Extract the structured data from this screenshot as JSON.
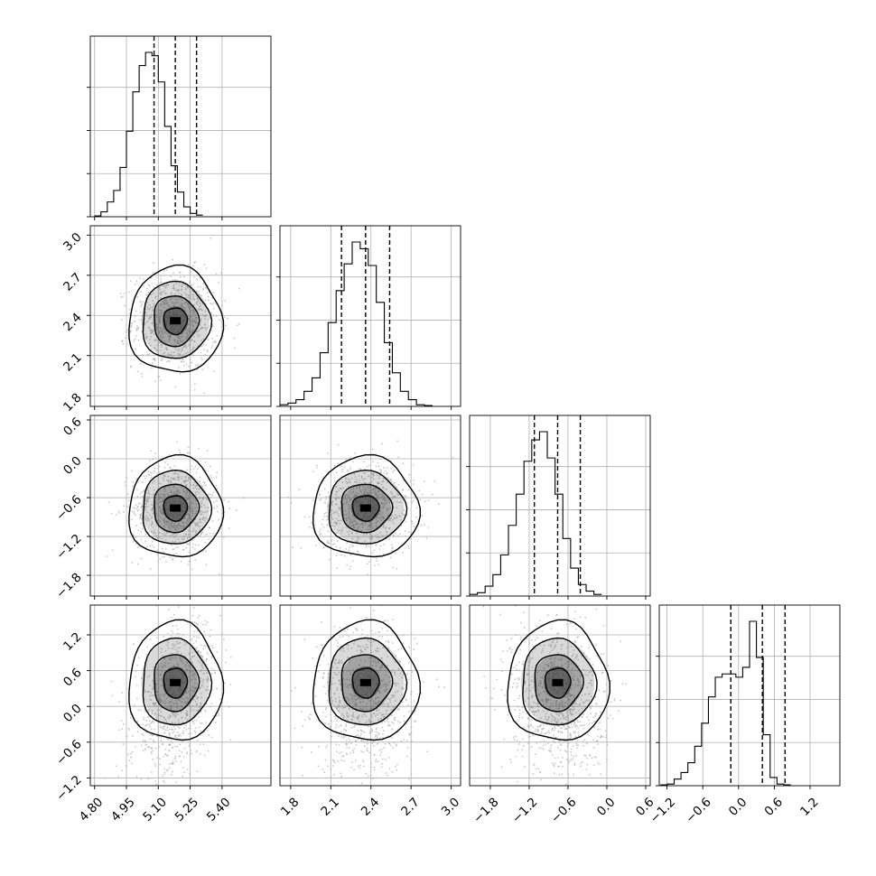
{
  "chart_data": {
    "type": "corner",
    "n_params": 4,
    "grid": true,
    "params": [
      {
        "range": [
          4.78,
          5.63
        ],
        "ticks": [
          4.8,
          4.95,
          5.1,
          5.25,
          5.4
        ],
        "tick_labels": [
          "4.80",
          "4.95",
          "5.10",
          "5.25",
          "5.40"
        ],
        "quantiles": [
          5.08,
          5.18,
          5.28
        ]
      },
      {
        "range": [
          1.72,
          3.07
        ],
        "ticks": [
          1.8,
          2.1,
          2.4,
          2.7,
          3.0
        ],
        "tick_labels": [
          "1.8",
          "2.1",
          "2.4",
          "2.7",
          "3.0"
        ],
        "quantiles": [
          2.18,
          2.36,
          2.54
        ]
      },
      {
        "range": [
          -2.12,
          0.67
        ],
        "ticks": [
          -1.8,
          -1.2,
          -0.6,
          0.0,
          0.6
        ],
        "tick_labels": [
          "−1.8",
          "−1.2",
          "−0.6",
          "0.0",
          "0.6"
        ],
        "quantiles": [
          -1.12,
          -0.76,
          -0.41
        ]
      },
      {
        "range": [
          -1.33,
          1.7
        ],
        "ticks": [
          -1.2,
          -0.6,
          0.0,
          0.6,
          1.2
        ],
        "tick_labels": [
          "−1.2",
          "−0.6",
          "0.0",
          "0.6",
          "1.2"
        ],
        "quantiles": [
          -0.13,
          0.4,
          0.78
        ]
      }
    ],
    "histograms": [
      {
        "param": 0,
        "edges_from": 4.8,
        "bin_width": 0.03,
        "counts": [
          0.5,
          3,
          9,
          16,
          30,
          52,
          76,
          92,
          100,
          98,
          82,
          55,
          31,
          15,
          6,
          2,
          1
        ]
      },
      {
        "param": 1,
        "edges_from": 1.72,
        "bin_width": 0.06,
        "counts": [
          1,
          2,
          4,
          9,
          17,
          32,
          50,
          69,
          85,
          98,
          94,
          84,
          62,
          38,
          20,
          9,
          4,
          1,
          0.5
        ]
      },
      {
        "param": 2,
        "edges_from": -2.12,
        "bin_width": 0.12,
        "counts": [
          1,
          2,
          6,
          13,
          25,
          43,
          62,
          82,
          95,
          100,
          84,
          62,
          35,
          17,
          7,
          3,
          1
        ]
      },
      {
        "param": 3,
        "edges_from": -1.31,
        "bin_width": 0.115,
        "counts": [
          0.5,
          1,
          4,
          8,
          14,
          24,
          38,
          54,
          66,
          68,
          68,
          66,
          72,
          100,
          78,
          31,
          5,
          1,
          0.5
        ]
      }
    ],
    "pair_correlations": [
      [
        1,
        0,
        0,
        0.35
      ],
      [
        0,
        1,
        0,
        0
      ],
      [
        0,
        0,
        1,
        -0.1
      ],
      [
        0.35,
        0,
        -0.1,
        1
      ]
    ],
    "contour_levels": [
      "0.5 sigma",
      "1 sigma",
      "1.5 sigma",
      "2 sigma"
    ]
  }
}
